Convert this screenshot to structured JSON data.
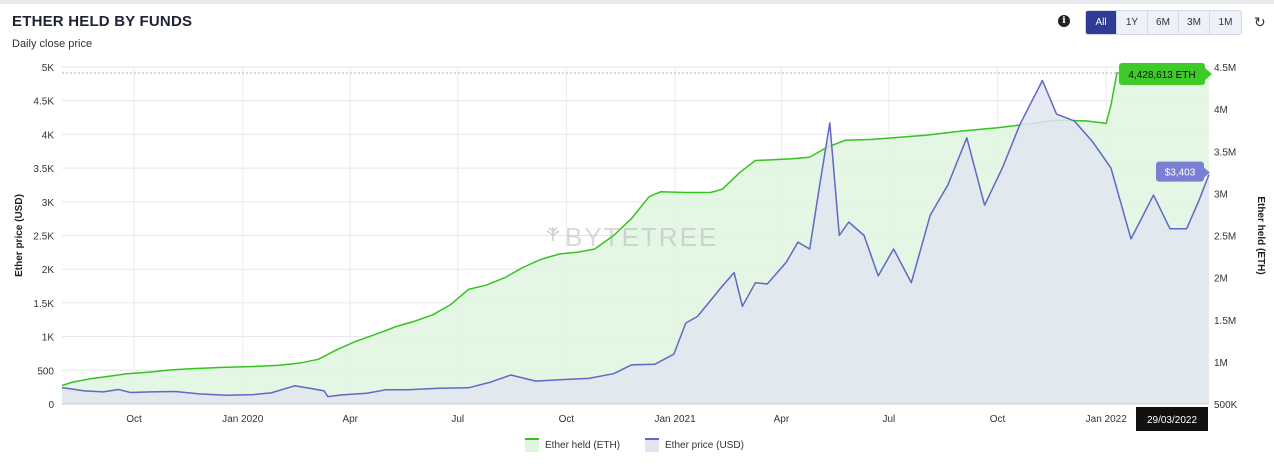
{
  "header": {
    "title": "ETHER HELD BY FUNDS",
    "subtitle": "Daily close price",
    "info_icon": "info-icon",
    "refresh_icon": "refresh-icon",
    "ranges": [
      {
        "label": "All",
        "active": true
      },
      {
        "label": "1Y",
        "active": false
      },
      {
        "label": "6M",
        "active": false
      },
      {
        "label": "3M",
        "active": false
      },
      {
        "label": "1M",
        "active": false
      }
    ]
  },
  "watermark": "BYTETREE",
  "chart_data": {
    "type": "area",
    "x_axis": {
      "start": "2019-08-01",
      "end": "2022-03-29",
      "tick_labels": [
        "Oct",
        "Jan 2020",
        "Apr",
        "Jul",
        "Oct",
        "Jan 2021",
        "Apr",
        "Jul",
        "Oct",
        "Jan 2022"
      ],
      "tick_dates": [
        "2019-10-01",
        "2020-01-01",
        "2020-04-01",
        "2020-07-01",
        "2020-10-01",
        "2021-01-01",
        "2021-04-01",
        "2021-07-01",
        "2021-10-01",
        "2022-01-01"
      ]
    },
    "y_left": {
      "label": "Ether price (USD)",
      "ylim": [
        0,
        5000
      ],
      "tick_labels": [
        "0",
        "500",
        "1K",
        "1.5K",
        "2K",
        "2.5K",
        "3K",
        "3.5K",
        "4K",
        "4.5K",
        "5K"
      ],
      "tick_values": [
        0,
        500,
        1000,
        1500,
        2000,
        2500,
        3000,
        3500,
        4000,
        4500,
        5000
      ]
    },
    "y_right": {
      "label": "Ether held (ETH)",
      "ylim": [
        500000,
        4500000
      ],
      "tick_labels": [
        "500K",
        "1M",
        "1.5M",
        "2M",
        "2.5M",
        "3M",
        "3.5M",
        "4M",
        "4.5M"
      ],
      "tick_values": [
        500000,
        1000000,
        1500000,
        2000000,
        2500000,
        3000000,
        3500000,
        4000000,
        4500000
      ]
    },
    "series": [
      {
        "name": "Ether held (ETH)",
        "axis": "right",
        "color": "#35c41f",
        "fill": "#dff5df",
        "points": [
          [
            "2019-08-01",
            720000
          ],
          [
            "2019-08-10",
            760000
          ],
          [
            "2019-08-25",
            800000
          ],
          [
            "2019-09-10",
            830000
          ],
          [
            "2019-09-25",
            860000
          ],
          [
            "2019-10-15",
            880000
          ],
          [
            "2019-11-01",
            905000
          ],
          [
            "2019-11-20",
            920000
          ],
          [
            "2019-12-15",
            935000
          ],
          [
            "2020-01-10",
            945000
          ],
          [
            "2020-02-01",
            960000
          ],
          [
            "2020-02-20",
            990000
          ],
          [
            "2020-03-05",
            1030000
          ],
          [
            "2020-03-20",
            1140000
          ],
          [
            "2020-04-05",
            1240000
          ],
          [
            "2020-04-25",
            1340000
          ],
          [
            "2020-05-10",
            1420000
          ],
          [
            "2020-05-25",
            1480000
          ],
          [
            "2020-06-10",
            1560000
          ],
          [
            "2020-06-25",
            1680000
          ],
          [
            "2020-07-10",
            1860000
          ],
          [
            "2020-07-25",
            1910000
          ],
          [
            "2020-08-10",
            2000000
          ],
          [
            "2020-08-25",
            2120000
          ],
          [
            "2020-09-10",
            2220000
          ],
          [
            "2020-09-25",
            2280000
          ],
          [
            "2020-10-10",
            2300000
          ],
          [
            "2020-10-25",
            2340000
          ],
          [
            "2020-11-10",
            2500000
          ],
          [
            "2020-11-25",
            2700000
          ],
          [
            "2020-12-10",
            2960000
          ],
          [
            "2020-12-20",
            3020000
          ],
          [
            "2021-01-10",
            3010000
          ],
          [
            "2021-01-31",
            3010000
          ],
          [
            "2021-02-10",
            3050000
          ],
          [
            "2021-02-25",
            3250000
          ],
          [
            "2021-03-10",
            3390000
          ],
          [
            "2021-03-25",
            3400000
          ],
          [
            "2021-04-10",
            3410000
          ],
          [
            "2021-04-25",
            3430000
          ],
          [
            "2021-05-10",
            3550000
          ],
          [
            "2021-05-25",
            3630000
          ],
          [
            "2021-06-15",
            3640000
          ],
          [
            "2021-07-05",
            3660000
          ],
          [
            "2021-08-01",
            3690000
          ],
          [
            "2021-09-01",
            3740000
          ],
          [
            "2021-10-01",
            3780000
          ],
          [
            "2021-11-01",
            3830000
          ],
          [
            "2021-11-20",
            3870000
          ],
          [
            "2021-12-15",
            3860000
          ],
          [
            "2022-01-01",
            3830000
          ],
          [
            "2022-01-05",
            4050000
          ],
          [
            "2022-01-10",
            4428613
          ],
          [
            "2022-03-29",
            4428613
          ]
        ]
      },
      {
        "name": "Ether price (USD)",
        "axis": "left",
        "color": "#6466c4",
        "fill": "#e1e6f1",
        "points": [
          [
            "2019-08-01",
            240
          ],
          [
            "2019-08-08",
            225
          ],
          [
            "2019-08-20",
            195
          ],
          [
            "2019-09-05",
            180
          ],
          [
            "2019-09-18",
            215
          ],
          [
            "2019-09-28",
            170
          ],
          [
            "2019-10-15",
            180
          ],
          [
            "2019-11-05",
            185
          ],
          [
            "2019-11-25",
            150
          ],
          [
            "2019-12-18",
            130
          ],
          [
            "2020-01-10",
            140
          ],
          [
            "2020-01-25",
            165
          ],
          [
            "2020-02-14",
            270
          ],
          [
            "2020-02-28",
            230
          ],
          [
            "2020-03-10",
            195
          ],
          [
            "2020-03-13",
            110
          ],
          [
            "2020-03-25",
            135
          ],
          [
            "2020-04-15",
            160
          ],
          [
            "2020-05-01",
            210
          ],
          [
            "2020-05-20",
            210
          ],
          [
            "2020-06-15",
            235
          ],
          [
            "2020-07-10",
            240
          ],
          [
            "2020-07-28",
            320
          ],
          [
            "2020-08-15",
            430
          ],
          [
            "2020-09-05",
            340
          ],
          [
            "2020-09-25",
            360
          ],
          [
            "2020-10-20",
            380
          ],
          [
            "2020-11-10",
            450
          ],
          [
            "2020-11-25",
            580
          ],
          [
            "2020-12-15",
            590
          ],
          [
            "2020-12-31",
            740
          ],
          [
            "2021-01-10",
            1200
          ],
          [
            "2021-01-20",
            1300
          ],
          [
            "2021-02-10",
            1750
          ],
          [
            "2021-02-20",
            1950
          ],
          [
            "2021-02-27",
            1450
          ],
          [
            "2021-03-10",
            1800
          ],
          [
            "2021-03-20",
            1780
          ],
          [
            "2021-04-05",
            2100
          ],
          [
            "2021-04-15",
            2400
          ],
          [
            "2021-04-25",
            2300
          ],
          [
            "2021-05-03",
            3200
          ],
          [
            "2021-05-12",
            4170
          ],
          [
            "2021-05-20",
            2500
          ],
          [
            "2021-05-28",
            2700
          ],
          [
            "2021-06-10",
            2500
          ],
          [
            "2021-06-22",
            1900
          ],
          [
            "2021-07-05",
            2300
          ],
          [
            "2021-07-20",
            1800
          ],
          [
            "2021-08-05",
            2800
          ],
          [
            "2021-08-20",
            3250
          ],
          [
            "2021-09-05",
            3950
          ],
          [
            "2021-09-20",
            2950
          ],
          [
            "2021-10-05",
            3500
          ],
          [
            "2021-10-20",
            4150
          ],
          [
            "2021-11-08",
            4800
          ],
          [
            "2021-11-20",
            4300
          ],
          [
            "2021-12-05",
            4200
          ],
          [
            "2021-12-20",
            3900
          ],
          [
            "2022-01-05",
            3500
          ],
          [
            "2022-01-22",
            2450
          ],
          [
            "2022-02-10",
            3100
          ],
          [
            "2022-02-24",
            2600
          ],
          [
            "2022-03-10",
            2600
          ],
          [
            "2022-03-20",
            3000
          ],
          [
            "2022-03-29",
            3403
          ]
        ]
      }
    ],
    "last_values": {
      "held_label": "4,428,613 ETH",
      "price_label": "$3,403",
      "date_label": "29/03/2022"
    },
    "legend": {
      "placement": "bottom-center",
      "items": [
        {
          "name": "Ether held (ETH)",
          "color": "#35c41f",
          "fill": "#dff5df"
        },
        {
          "name": "Ether price (USD)",
          "color": "#6466c4",
          "fill": "#e1e6f1"
        }
      ]
    },
    "grid": true
  }
}
